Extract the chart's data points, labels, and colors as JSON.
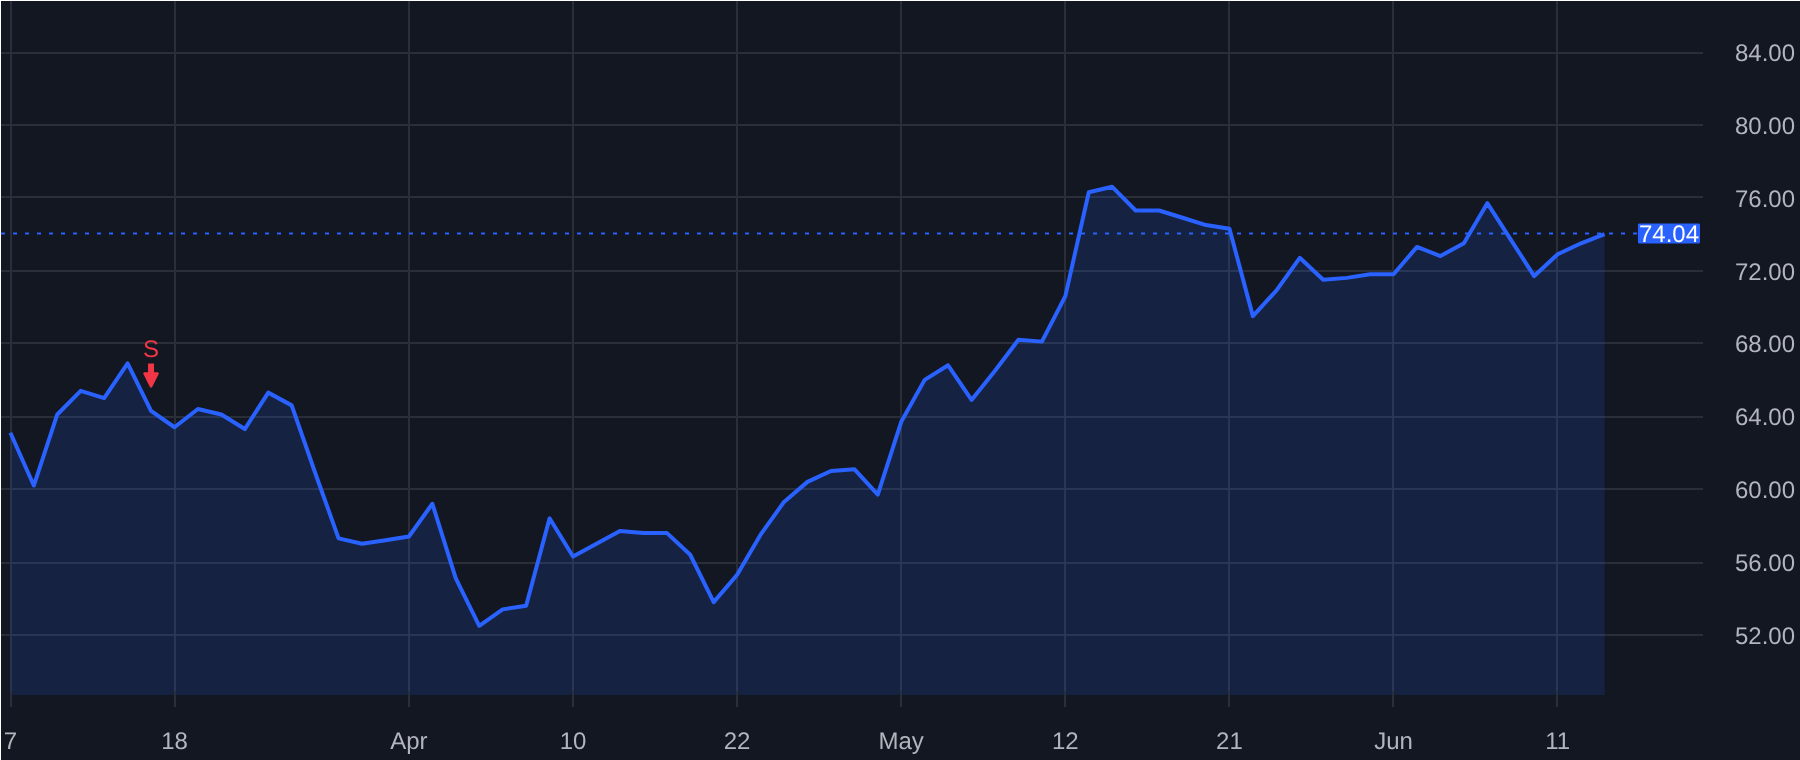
{
  "chart_data": {
    "type": "area",
    "categories": [
      "7",
      null,
      null,
      null,
      null,
      null,
      null,
      "18",
      null,
      null,
      null,
      null,
      null,
      null,
      null,
      null,
      null,
      "Apr",
      null,
      null,
      null,
      null,
      null,
      null,
      "10",
      null,
      null,
      null,
      null,
      null,
      null,
      "22",
      null,
      null,
      null,
      null,
      null,
      null,
      "May",
      null,
      null,
      null,
      null,
      null,
      null,
      "12",
      null,
      null,
      null,
      null,
      null,
      null,
      "21",
      null,
      null,
      null,
      null,
      null,
      null,
      "Jun",
      null,
      null,
      null,
      null,
      null,
      null,
      "11",
      null,
      null
    ],
    "series": [
      {
        "color": "#2962ff",
        "values": [
          63.1,
          60.2,
          64.1,
          65.4,
          65.0,
          66.9,
          64.3,
          63.4,
          64.4,
          64.1,
          63.3,
          65.3,
          64.6,
          60.9,
          57.3,
          57.0,
          57.2,
          57.4,
          59.2,
          55.1,
          52.5,
          53.4,
          53.6,
          58.4,
          56.3,
          57.0,
          57.7,
          57.6,
          57.6,
          56.4,
          53.8,
          55.3,
          57.5,
          59.3,
          60.4,
          61.0,
          61.1,
          59.7,
          63.7,
          66.0,
          66.8,
          64.9,
          66.5,
          68.2,
          68.1,
          70.6,
          76.3,
          76.6,
          75.3,
          75.3,
          74.9,
          74.5,
          74.3,
          69.5,
          70.9,
          72.7,
          71.5,
          71.6,
          71.8,
          71.8,
          73.3,
          72.8,
          73.5,
          75.7,
          73.7,
          71.7,
          72.9,
          73.5,
          74.0
        ]
      }
    ],
    "ylim": [
      48.7,
      86.8
    ],
    "yticks": [
      {
        "value": 52,
        "label": "52.00"
      },
      {
        "value": 56,
        "label": "56.00"
      },
      {
        "value": 60,
        "label": "60.00"
      },
      {
        "value": 64,
        "label": "64.00"
      },
      {
        "value": 68,
        "label": "68.00"
      },
      {
        "value": 72,
        "label": "72.00"
      },
      {
        "value": 76,
        "label": "76.00"
      },
      {
        "value": 80,
        "label": "80.00"
      },
      {
        "value": 84,
        "label": "84.00"
      }
    ],
    "ref_lines": [
      {
        "axis": "y",
        "value": 74.04,
        "label": "74.04",
        "color": "#2962ff",
        "line_style": "dotted"
      }
    ],
    "annotations": [
      "S"
    ],
    "grid": true,
    "line_style": "solid",
    "marker": "none"
  }
}
